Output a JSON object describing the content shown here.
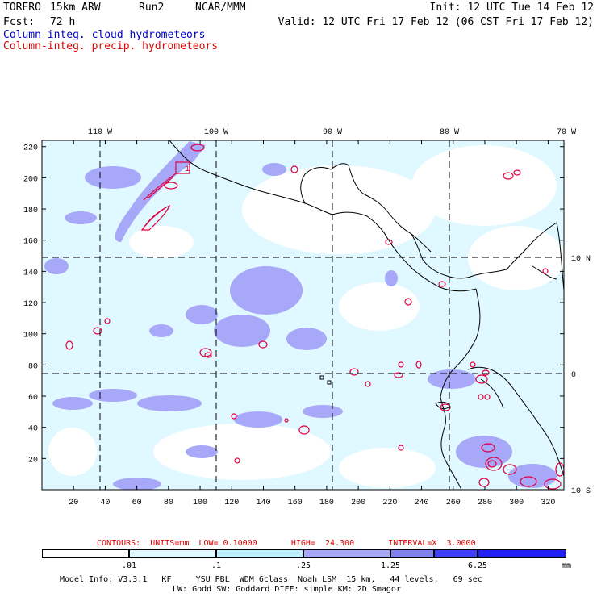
{
  "header": {
    "model": "TORERO",
    "resolution": "15km ARW",
    "run": "Run2",
    "org": "NCAR/MMM",
    "init": "Init: 12 UTC Tue 14 Feb 12",
    "fcst_label": "Fcst:",
    "fcst_hours": "72 h",
    "valid": "Valid: 12 UTC Fri 17 Feb 12 (06 CST Fri 17 Feb 12)",
    "legend_cloud": "Column-integ. cloud hydrometeors",
    "legend_precip": "Column-integ. precip. hydrometeors"
  },
  "map": {
    "lon_labels": [
      "110 W",
      "100 W",
      "90 W",
      "80 W",
      "70 W"
    ],
    "lat_labels": [
      "10 N",
      "0",
      "10 S"
    ],
    "x_ticks": [
      "20",
      "40",
      "60",
      "80",
      "100",
      "120",
      "140",
      "160",
      "180",
      "200",
      "220",
      "240",
      "260",
      "280",
      "300",
      "320"
    ],
    "y_ticks": [
      "20",
      "40",
      "60",
      "80",
      "100",
      "120",
      "140",
      "160",
      "180",
      "200",
      "220"
    ],
    "marker": "1",
    "colors": {
      "cloud_1": "#e0f8ff",
      "cloud_2": "#a8a8f8",
      "cloud_3": "#8080f0",
      "precip": "#e00040",
      "coast": "#000000"
    }
  },
  "contours": {
    "text": "CONTOURS:  UNITS=mm  LOW= 0.10000       HIGH=  24.300       INTERVAL=X  3.0000"
  },
  "colorbar": {
    "labels": [
      ".01",
      ".1",
      ".25",
      "1.25",
      "6.25"
    ],
    "units": "mm",
    "colors": [
      "#ffffff",
      "#e0f8ff",
      "#c0f0ff",
      "#a8a8f8",
      "#8080f0",
      "#4040f8",
      "#2020f0"
    ]
  },
  "footer": {
    "line1": "Model Info: V3.3.1   KF     YSU PBL  WDM 6class  Noah LSM  15 km,   44 levels,   69 sec",
    "line2": "LW: Godd SW: Goddard DIFF: simple KM: 2D Smagor"
  }
}
